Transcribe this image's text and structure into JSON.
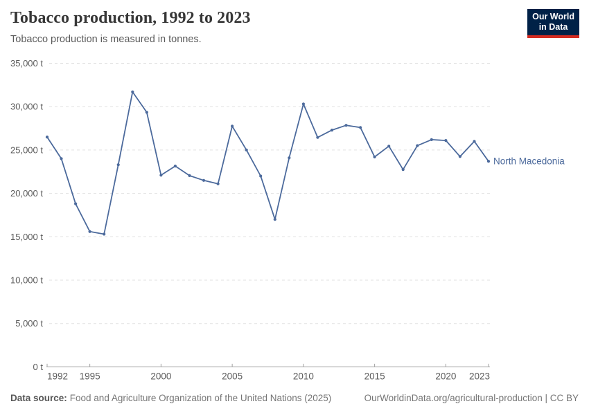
{
  "header": {
    "title": "Tobacco production, 1992 to 2023",
    "subtitle": "Tobacco production is measured in tonnes.",
    "logo": {
      "line1": "Our World",
      "line2": "in Data"
    }
  },
  "footer": {
    "source_label": "Data source:",
    "source_text": "Food and Agriculture Organization of the United Nations (2025)",
    "link_text": "OurWorldinData.org/agricultural-production | CC BY"
  },
  "colors": {
    "line": "#4C6A9C",
    "entity_label": "#4C6A9C",
    "logo_bg": "#002147",
    "logo_stripe": "#D42B21",
    "grid": "#E0E0E0",
    "axis": "#A1A1A1",
    "tick_text": "#5B5B5B"
  },
  "chart_data": {
    "type": "line",
    "title": "Tobacco production, 1992 to 2023",
    "subtitle": "Tobacco production is measured in tonnes.",
    "unit": "t",
    "entity_label": "North Macedonia",
    "xlim": [
      1992,
      2023
    ],
    "ylim": [
      0,
      35000
    ],
    "grid": true,
    "legend_position": "right-of-line-end",
    "x_ticks": [
      1992,
      1995,
      2000,
      2005,
      2010,
      2015,
      2020,
      2023
    ],
    "x_tick_labels": [
      "1992",
      "1995",
      "2000",
      "2005",
      "2010",
      "2015",
      "2020",
      "2023"
    ],
    "y_ticks": [
      0,
      5000,
      10000,
      15000,
      20000,
      25000,
      30000,
      35000
    ],
    "y_tick_labels": [
      "0 t",
      "5,000 t",
      "10,000 t",
      "15,000 t",
      "20,000 t",
      "25,000 t",
      "30,000 t",
      "35,000 t"
    ],
    "series": [
      {
        "name": "North Macedonia",
        "x": [
          1992,
          1993,
          1994,
          1995,
          1996,
          1997,
          1998,
          1999,
          2000,
          2001,
          2002,
          2003,
          2004,
          2005,
          2006,
          2007,
          2008,
          2009,
          2010,
          2011,
          2012,
          2013,
          2014,
          2015,
          2016,
          2017,
          2018,
          2019,
          2020,
          2021,
          2022,
          2023
        ],
        "values": [
          26500,
          24000,
          18800,
          15600,
          15300,
          23300,
          31700,
          29350,
          22100,
          23150,
          22050,
          21500,
          21100,
          27750,
          25000,
          22000,
          17000,
          24100,
          30300,
          26450,
          27300,
          27850,
          27600,
          24200,
          25450,
          22750,
          25500,
          26200,
          26100,
          24250,
          26000,
          23700
        ]
      }
    ]
  }
}
